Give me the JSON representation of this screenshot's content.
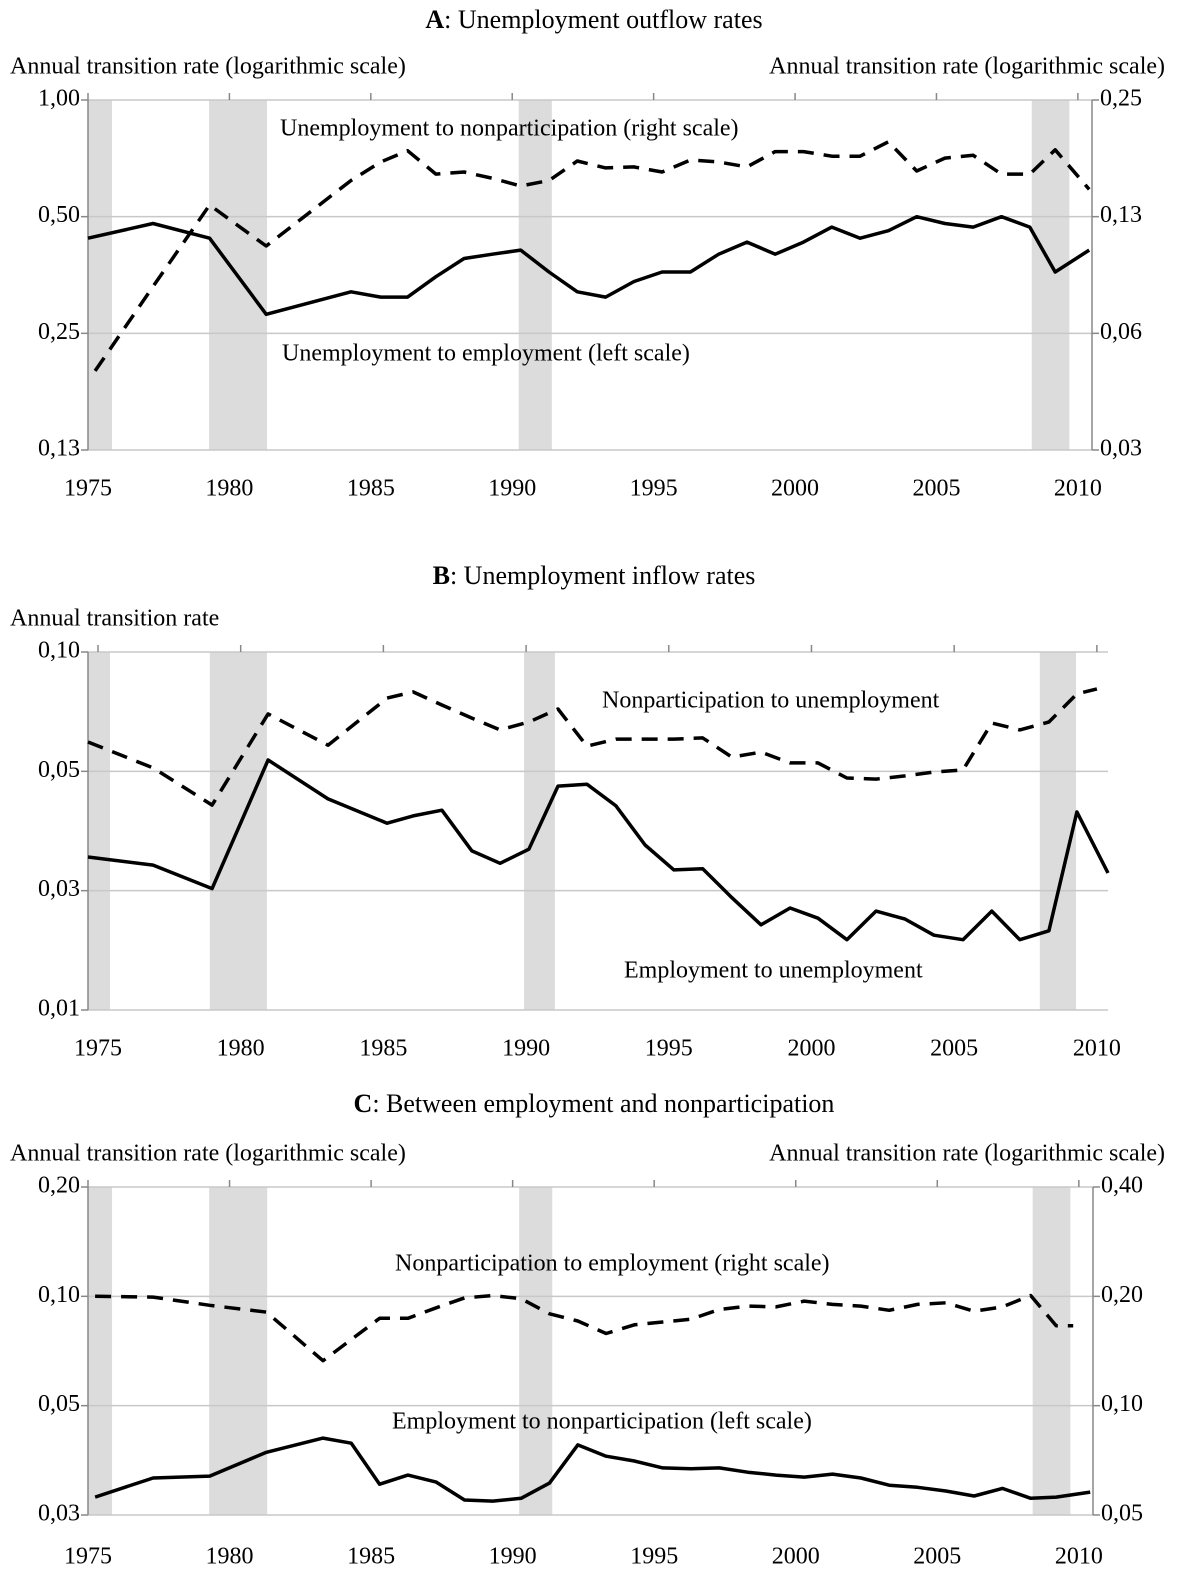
{
  "chart_data": [
    {
      "type": "line",
      "panel": "A",
      "title": ": Unemployment outflow rates",
      "ylabel": "Annual transition rate (logarithmic scale)",
      "y2label": "Annual transition rate (logarithmic scale)",
      "log": true,
      "grid": true,
      "xlim": [
        1975,
        2010.5
      ],
      "xticks": [
        1975,
        1980,
        1985,
        1990,
        1995,
        2000,
        2005,
        2010
      ],
      "ylim": [
        0.125,
        1.0
      ],
      "yticks": [
        {
          "value": 0.125,
          "label": "0,13"
        },
        {
          "value": 0.25,
          "label": "0,25"
        },
        {
          "value": 0.5,
          "label": "0,50"
        },
        {
          "value": 1.0,
          "label": "1,00"
        }
      ],
      "y2lim": [
        0.03125,
        0.25
      ],
      "y2ticks": [
        {
          "value": 0.03125,
          "label": "0,03"
        },
        {
          "value": 0.0625,
          "label": "0,06"
        },
        {
          "value": 0.125,
          "label": "0,13"
        },
        {
          "value": 0.25,
          "label": "0,25"
        }
      ],
      "shaded_periods": [
        [
          1975,
          1975.85
        ],
        [
          1979.28,
          1981.33
        ],
        [
          1990.23,
          1991.4
        ],
        [
          2008.37,
          2009.7
        ]
      ],
      "shade_color": "#dcdcdc",
      "series": [
        {
          "name": "Unemployment to employment (left scale)",
          "color": "#000000",
          "style": "solid",
          "x": [
            1975.0,
            1977.3,
            1979.3,
            1981.3,
            1984.3,
            1985.35,
            1986.3,
            1987.3,
            1988.3,
            1989.3,
            1990.3,
            1991.3,
            1992.3,
            1993.3,
            1994.3,
            1995.3,
            1996.3,
            1997.3,
            1998.3,
            1999.3,
            2000.3,
            2001.3,
            2002.3,
            2003.3,
            2004.3,
            2005.3,
            2006.3,
            2007.3,
            2008.3,
            2009.2,
            2010.4
          ],
          "values": [
            0.44,
            0.48,
            0.44,
            0.28,
            0.32,
            0.31,
            0.31,
            0.35,
            0.39,
            0.4,
            0.41,
            0.36,
            0.32,
            0.31,
            0.34,
            0.36,
            0.36,
            0.4,
            0.43,
            0.4,
            0.43,
            0.47,
            0.44,
            0.46,
            0.5,
            0.48,
            0.47,
            0.5,
            0.47,
            0.36,
            0.41
          ]
        },
        {
          "name": "Unemployment to nonparticipation (right scale)",
          "color": "#000000",
          "style": "dashed",
          "axis": "y2",
          "x": [
            1975.25,
            1977.3,
            1979.3,
            1981.3,
            1984.3,
            1985.35,
            1986.3,
            1987.3,
            1988.3,
            1989.3,
            1990.3,
            1991.3,
            1992.3,
            1993.3,
            1994.3,
            1995.3,
            1996.3,
            1997.3,
            1998.3,
            1999.3,
            2000.3,
            2001.3,
            2002.3,
            2003.3,
            2004.3,
            2005.3,
            2006.3,
            2007.3,
            2008.3,
            2009.2,
            2010.4
          ],
          "values": [
            0.05,
            0.0825,
            0.134,
            0.105,
            0.155,
            0.173,
            0.185,
            0.161,
            0.163,
            0.157,
            0.15,
            0.155,
            0.174,
            0.167,
            0.168,
            0.163,
            0.175,
            0.173,
            0.168,
            0.184,
            0.184,
            0.179,
            0.179,
            0.195,
            0.164,
            0.177,
            0.18,
            0.161,
            0.161,
            0.186,
            0.147
          ]
        }
      ]
    },
    {
      "type": "line",
      "panel": "B",
      "title": ": Unemployment inflow rates",
      "ylabel": "Annual transition rate",
      "log": true,
      "grid": true,
      "xlim": [
        1974.65,
        2010.39
      ],
      "xticks": [
        1975,
        1980,
        1985,
        1990,
        1995,
        2000,
        2005,
        2010
      ],
      "ylim": [
        0.0125,
        0.1
      ],
      "yticks": [
        {
          "value": 0.0125,
          "label": "0,01"
        },
        {
          "value": 0.025,
          "label": "0,03"
        },
        {
          "value": 0.05,
          "label": "0,05"
        },
        {
          "value": 0.1,
          "label": "0,10"
        }
      ],
      "shaded_periods": [
        [
          1974.65,
          1975.42
        ],
        [
          1978.92,
          1980.92
        ],
        [
          1989.93,
          1991.01
        ],
        [
          2008.0,
          2009.27
        ]
      ],
      "shade_color": "#dcdcdc",
      "series": [
        {
          "name": "Employment to unemployment",
          "color": "#000000",
          "style": "solid",
          "x": [
            1974.65,
            1976.93,
            1979.0,
            1980.96,
            1983.06,
            1985.13,
            1986.04,
            1987.05,
            1988.1,
            1989.09,
            1990.1,
            1991.12,
            1992.13,
            1993.15,
            1994.17,
            1995.18,
            1996.19,
            1997.21,
            1998.23,
            1999.25,
            2000.23,
            2001.24,
            2002.26,
            2003.28,
            2004.29,
            2005.31,
            2006.32,
            2007.3,
            2008.32,
            2009.3,
            2010.39
          ],
          "values": [
            0.0304,
            0.029,
            0.0253,
            0.0534,
            0.0426,
            0.037,
            0.0386,
            0.0399,
            0.0315,
            0.0293,
            0.0318,
            0.0459,
            0.0464,
            0.0409,
            0.0326,
            0.0282,
            0.0284,
            0.024,
            0.0205,
            0.0226,
            0.0213,
            0.0188,
            0.0222,
            0.0212,
            0.0193,
            0.0188,
            0.0222,
            0.0188,
            0.0198,
            0.0395,
            0.0277
          ]
        },
        {
          "name": "Nonparticipation to unemployment",
          "color": "#000000",
          "style": "dashed",
          "x": [
            1974.65,
            1976.93,
            1979.0,
            1980.96,
            1983.06,
            1985.13,
            1986.04,
            1987.05,
            1988.1,
            1989.09,
            1990.1,
            1991.12,
            1992.13,
            1993.15,
            1994.17,
            1995.18,
            1996.19,
            1997.21,
            1998.23,
            1999.25,
            2000.23,
            2001.24,
            2002.26,
            2003.28,
            2004.29,
            2005.31,
            2006.32,
            2007.3,
            2008.32,
            2009.3,
            2010.0
          ],
          "values": [
            0.0593,
            0.051,
            0.0411,
            0.0698,
            0.0582,
            0.0765,
            0.0793,
            0.0735,
            0.0681,
            0.0636,
            0.0666,
            0.0718,
            0.0579,
            0.0603,
            0.0603,
            0.0603,
            0.0607,
            0.0543,
            0.0559,
            0.0525,
            0.0525,
            0.0481,
            0.0478,
            0.0487,
            0.0498,
            0.0504,
            0.0662,
            0.0636,
            0.0666,
            0.0784,
            0.0807
          ]
        }
      ]
    },
    {
      "type": "line",
      "panel": "C",
      "title": ": Between employment and nonparticipation",
      "ylabel": "Annual transition rate (logarithmic scale)",
      "y2label": "Annual transition rate (logarithmic scale)",
      "log": true,
      "grid": true,
      "xlim": [
        1975,
        2010.5
      ],
      "xticks": [
        1975,
        1980,
        1985,
        1990,
        1995,
        2000,
        2005,
        2010
      ],
      "ylim": [
        0.025,
        0.2
      ],
      "yticks": [
        {
          "value": 0.025,
          "label": "0,03"
        },
        {
          "value": 0.05,
          "label": "0,05"
        },
        {
          "value": 0.1,
          "label": "0,10"
        },
        {
          "value": 0.2,
          "label": "0,20"
        }
      ],
      "y2lim": [
        0.05,
        0.4
      ],
      "y2ticks": [
        {
          "value": 0.05,
          "label": "0,05"
        },
        {
          "value": 0.1,
          "label": "0,10"
        },
        {
          "value": 0.2,
          "label": "0,20"
        },
        {
          "value": 0.4,
          "label": "0,40"
        }
      ],
      "shaded_periods": [
        [
          1975,
          1975.85
        ],
        [
          1979.28,
          1981.33
        ],
        [
          1990.23,
          1991.4
        ],
        [
          2008.37,
          2009.7
        ]
      ],
      "shade_color": "#dcdcdc",
      "series": [
        {
          "name": "Employment to nonparticipation (left scale)",
          "color": "#000000",
          "style": "solid",
          "x": [
            1975.25,
            1977.3,
            1979.3,
            1981.3,
            1983.3,
            1984.3,
            1985.3,
            1986.3,
            1987.3,
            1988.3,
            1989.3,
            1990.3,
            1991.3,
            1992.3,
            1993.3,
            1994.3,
            1995.3,
            1996.3,
            1997.3,
            1998.3,
            1999.3,
            2000.3,
            2001.3,
            2002.3,
            2003.3,
            2004.3,
            2005.3,
            2006.3,
            2007.3,
            2008.3,
            2009.2,
            2010.4
          ],
          "values": [
            0.028,
            0.0316,
            0.032,
            0.0372,
            0.0407,
            0.0394,
            0.0304,
            0.0322,
            0.0308,
            0.0275,
            0.0273,
            0.0278,
            0.0306,
            0.039,
            0.0363,
            0.0352,
            0.0337,
            0.0335,
            0.0337,
            0.0328,
            0.0322,
            0.0318,
            0.0324,
            0.0316,
            0.0302,
            0.0298,
            0.0291,
            0.0282,
            0.0296,
            0.0278,
            0.028,
            0.0289
          ]
        },
        {
          "name": "Nonparticipation to employment (right scale)",
          "color": "#000000",
          "style": "dashed",
          "axis": "y2",
          "x": [
            1975.25,
            1977.3,
            1979.3,
            1981.3,
            1983.3,
            1985.3,
            1986.3,
            1987.3,
            1988.3,
            1989.3,
            1990.3,
            1991.3,
            1992.3,
            1993.3,
            1994.3,
            1995.3,
            1996.3,
            1997.3,
            1998.3,
            1999.3,
            2000.3,
            2001.3,
            2002.3,
            2003.3,
            2004.3,
            2005.3,
            2006.3,
            2007.3,
            2008.3,
            2009.2,
            2009.8
          ],
          "values": [
            0.2,
            0.199,
            0.189,
            0.181,
            0.133,
            0.174,
            0.174,
            0.186,
            0.198,
            0.201,
            0.197,
            0.179,
            0.171,
            0.158,
            0.167,
            0.17,
            0.173,
            0.184,
            0.188,
            0.187,
            0.194,
            0.19,
            0.188,
            0.183,
            0.19,
            0.192,
            0.182,
            0.187,
            0.201,
            0.166,
            0.166
          ]
        }
      ]
    }
  ]
}
